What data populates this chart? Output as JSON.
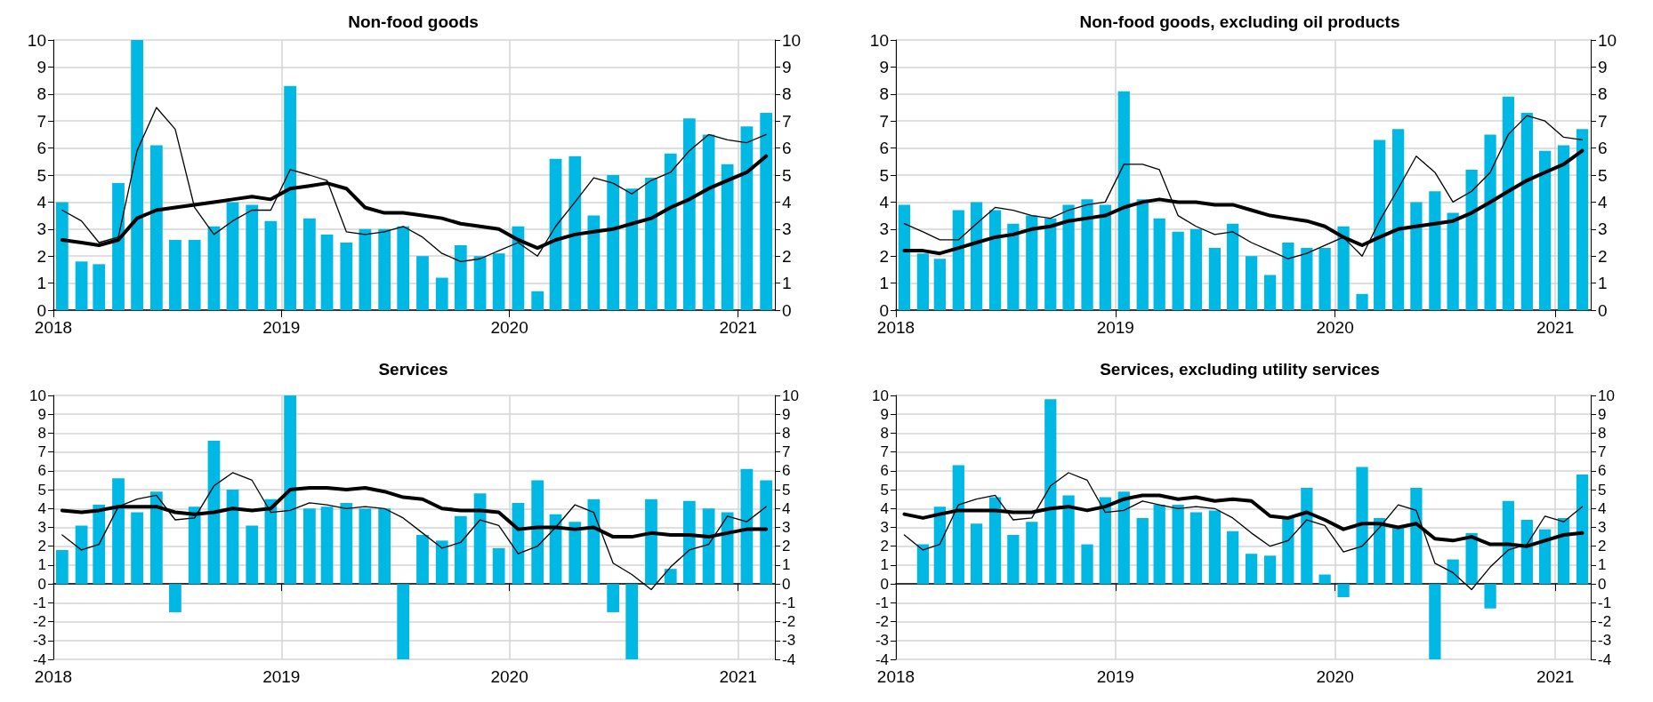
{
  "chart_data": [
    {
      "type": "bar",
      "title": "Non-food goods",
      "x": [
        "2018-01-15",
        "2018-02-15",
        "2018-03-15",
        "2018-04-15",
        "2018-05-15",
        "2018-06-15",
        "2018-07-15",
        "2018-08-15",
        "2018-09-15",
        "2018-10-15",
        "2018-11-15",
        "2018-12-15",
        "2019-01-15",
        "2019-02-15",
        "2019-03-15",
        "2019-04-15",
        "2019-05-15",
        "2019-06-15",
        "2019-07-15",
        "2019-08-15",
        "2019-09-15",
        "2019-10-15",
        "2019-11-15",
        "2019-12-15",
        "2020-01-15",
        "2020-02-15",
        "2020-03-15",
        "2020-04-15",
        "2020-05-15",
        "2020-06-15",
        "2020-07-15",
        "2020-08-15",
        "2020-09-15",
        "2020-10-15",
        "2020-11-15",
        "2020-12-15",
        "2021-01-15",
        "2021-02-15"
      ],
      "xlim": [
        "2018-01-01",
        "2021-03-01"
      ],
      "xticks": [
        "2018",
        "2019",
        "2020",
        "2021"
      ],
      "ylim": [
        0,
        10
      ],
      "yticks": [
        0,
        1,
        2,
        3,
        4,
        5,
        6,
        7,
        8,
        9,
        10
      ],
      "y2lim": [
        0,
        10
      ],
      "y2ticks": [
        0,
        1,
        2,
        3,
        4,
        5,
        6,
        7,
        8,
        9,
        10
      ],
      "grid": true,
      "marker": "none",
      "series": [
        {
          "color": "#00b8e4",
          "values": [
            4.0,
            1.8,
            1.7,
            4.7,
            10,
            6.1,
            2.6,
            2.6,
            3.1,
            4.0,
            3.9,
            3.3,
            8.3,
            3.4,
            2.8,
            2.5,
            3.0,
            3.0,
            3.1,
            2.0,
            1.2,
            2.4,
            2.0,
            2.1,
            3.1,
            0.7,
            5.6,
            5.7,
            3.5,
            5.0,
            4.5,
            4.9,
            5.8,
            7.1,
            6.5,
            5.4,
            6.8,
            7.3
          ]
        },
        {
          "type": "line",
          "color": "#000000",
          "values": [
            3.7,
            3.3,
            2.5,
            2.7,
            5.9,
            7.5,
            6.7,
            3.8,
            2.8,
            3.3,
            3.7,
            3.7,
            5.2,
            5.0,
            4.8,
            2.9,
            2.8,
            2.9,
            3.1,
            2.7,
            2.1,
            1.8,
            1.9,
            2.2,
            2.5,
            2.0,
            3.1,
            4.0,
            4.9,
            4.7,
            4.3,
            4.8,
            5.1,
            5.9,
            6.5,
            6.3,
            6.2,
            6.5
          ]
        },
        {
          "type": "line",
          "color": "#000000",
          "values": [
            2.6,
            2.5,
            2.4,
            2.6,
            3.4,
            3.7,
            3.8,
            3.9,
            4.0,
            4.1,
            4.2,
            4.1,
            4.5,
            4.6,
            4.7,
            4.5,
            3.8,
            3.6,
            3.6,
            3.5,
            3.4,
            3.2,
            3.1,
            3.0,
            2.6,
            2.3,
            2.6,
            2.8,
            2.9,
            3.0,
            3.2,
            3.4,
            3.8,
            4.1,
            4.5,
            4.8,
            5.1,
            5.7
          ]
        }
      ]
    },
    {
      "type": "bar",
      "title": "Non-food goods, excluding oil products",
      "x": [
        "2018-01-15",
        "2018-02-15",
        "2018-03-15",
        "2018-04-15",
        "2018-05-15",
        "2018-06-15",
        "2018-07-15",
        "2018-08-15",
        "2018-09-15",
        "2018-10-15",
        "2018-11-15",
        "2018-12-15",
        "2019-01-15",
        "2019-02-15",
        "2019-03-15",
        "2019-04-15",
        "2019-05-15",
        "2019-06-15",
        "2019-07-15",
        "2019-08-15",
        "2019-09-15",
        "2019-10-15",
        "2019-11-15",
        "2019-12-15",
        "2020-01-15",
        "2020-02-15",
        "2020-03-15",
        "2020-04-15",
        "2020-05-15",
        "2020-06-15",
        "2020-07-15",
        "2020-08-15",
        "2020-09-15",
        "2020-10-15",
        "2020-11-15",
        "2020-12-15",
        "2021-01-15",
        "2021-02-15"
      ],
      "xlim": [
        "2018-01-01",
        "2021-03-01"
      ],
      "xticks": [
        "2018",
        "2019",
        "2020",
        "2021"
      ],
      "ylim": [
        0,
        10
      ],
      "yticks": [
        0,
        1,
        2,
        3,
        4,
        5,
        6,
        7,
        8,
        9,
        10
      ],
      "y2lim": [
        0,
        10
      ],
      "y2ticks": [
        0,
        1,
        2,
        3,
        4,
        5,
        6,
        7,
        8,
        9,
        10
      ],
      "grid": true,
      "marker": "none",
      "series": [
        {
          "color": "#00b8e4",
          "values": [
            3.9,
            2.1,
            1.9,
            3.7,
            4.0,
            3.7,
            3.2,
            3.5,
            3.4,
            3.9,
            4.1,
            3.9,
            8.1,
            4.1,
            3.4,
            2.9,
            3.0,
            2.3,
            3.2,
            2.0,
            1.3,
            2.5,
            2.3,
            2.3,
            3.1,
            0.6,
            6.3,
            6.7,
            4.0,
            4.4,
            3.6,
            5.2,
            6.5,
            7.9,
            7.3,
            5.9,
            6.1,
            6.7
          ]
        },
        {
          "type": "line",
          "color": "#000000",
          "values": [
            3.2,
            2.9,
            2.6,
            2.6,
            3.2,
            3.8,
            3.7,
            3.5,
            3.4,
            3.7,
            3.9,
            4.0,
            5.4,
            5.4,
            5.2,
            3.5,
            3.1,
            2.8,
            2.9,
            2.5,
            2.2,
            1.9,
            2.1,
            2.4,
            2.7,
            2.0,
            3.3,
            4.5,
            5.7,
            5.1,
            4.0,
            4.4,
            5.1,
            6.5,
            7.2,
            7.0,
            6.4,
            6.3
          ]
        },
        {
          "type": "line",
          "color": "#000000",
          "values": [
            2.2,
            2.2,
            2.1,
            2.3,
            2.5,
            2.7,
            2.8,
            3.0,
            3.1,
            3.3,
            3.4,
            3.5,
            3.8,
            4.0,
            4.1,
            4.0,
            4.0,
            3.9,
            3.9,
            3.7,
            3.5,
            3.4,
            3.3,
            3.1,
            2.7,
            2.4,
            2.7,
            3.0,
            3.1,
            3.2,
            3.3,
            3.6,
            4.0,
            4.4,
            4.8,
            5.1,
            5.4,
            5.9
          ]
        }
      ]
    },
    {
      "type": "bar",
      "title": "Services",
      "x": [
        "2018-01-15",
        "2018-02-15",
        "2018-03-15",
        "2018-04-15",
        "2018-05-15",
        "2018-06-15",
        "2018-07-15",
        "2018-08-15",
        "2018-09-15",
        "2018-10-15",
        "2018-11-15",
        "2018-12-15",
        "2019-01-15",
        "2019-02-15",
        "2019-03-15",
        "2019-04-15",
        "2019-05-15",
        "2019-06-15",
        "2019-07-15",
        "2019-08-15",
        "2019-09-15",
        "2019-10-15",
        "2019-11-15",
        "2019-12-15",
        "2020-01-15",
        "2020-02-15",
        "2020-03-15",
        "2020-04-15",
        "2020-05-15",
        "2020-06-15",
        "2020-07-15",
        "2020-08-15",
        "2020-09-15",
        "2020-10-15",
        "2020-11-15",
        "2020-12-15",
        "2021-01-15",
        "2021-02-15"
      ],
      "xlim": [
        "2018-01-01",
        "2021-03-01"
      ],
      "xticks": [
        "2018",
        "2019",
        "2020",
        "2021"
      ],
      "ylim": [
        -4,
        10
      ],
      "yticks": [
        -4,
        -3,
        -2,
        -1,
        0,
        1,
        2,
        3,
        4,
        5,
        6,
        7,
        8,
        9,
        10
      ],
      "y2lim": [
        -4,
        10
      ],
      "y2ticks": [
        -4,
        -3,
        -2,
        -1,
        0,
        1,
        2,
        3,
        4,
        5,
        6,
        7,
        8,
        9,
        10
      ],
      "grid": true,
      "marker": "none",
      "series": [
        {
          "color": "#00b8e4",
          "values": [
            1.8,
            3.1,
            4.2,
            5.6,
            3.8,
            4.9,
            -1.5,
            4.1,
            7.6,
            5.0,
            3.1,
            4.5,
            10,
            4.0,
            4.1,
            4.3,
            4.0,
            4.0,
            -4,
            2.6,
            2.3,
            3.6,
            4.8,
            1.9,
            4.3,
            5.5,
            3.7,
            3.3,
            4.5,
            -1.5,
            -4,
            4.5,
            0.8,
            4.4,
            4.0,
            3.8,
            6.1,
            5.5
          ]
        },
        {
          "type": "line",
          "color": "#000000",
          "values": [
            2.6,
            1.8,
            2.1,
            4.1,
            4.5,
            4.7,
            3.4,
            3.5,
            5.2,
            5.9,
            5.5,
            3.8,
            3.9,
            4.3,
            4.2,
            4.0,
            4.1,
            4.0,
            3.5,
            2.7,
            1.9,
            2.2,
            3.4,
            3.1,
            1.6,
            2.0,
            3.0,
            4.2,
            3.8,
            1.1,
            0.5,
            -0.3,
            0.9,
            1.8,
            2.1,
            3.6,
            3.3,
            4.1
          ]
        },
        {
          "type": "line",
          "color": "#000000",
          "values": [
            3.9,
            3.8,
            3.9,
            4.1,
            4.1,
            4.1,
            3.8,
            3.7,
            3.8,
            4.0,
            3.9,
            4.0,
            5.0,
            5.1,
            5.1,
            5.0,
            5.1,
            4.9,
            4.6,
            4.5,
            4.0,
            3.9,
            3.9,
            3.8,
            2.9,
            3.0,
            3.0,
            2.9,
            3.0,
            2.5,
            2.5,
            2.7,
            2.6,
            2.6,
            2.5,
            2.7,
            2.9,
            2.9
          ]
        }
      ]
    },
    {
      "type": "bar",
      "title": "Services, excluding utility services",
      "x": [
        "2018-01-15",
        "2018-02-15",
        "2018-03-15",
        "2018-04-15",
        "2018-05-15",
        "2018-06-15",
        "2018-07-15",
        "2018-08-15",
        "2018-09-15",
        "2018-10-15",
        "2018-11-15",
        "2018-12-15",
        "2019-01-15",
        "2019-02-15",
        "2019-03-15",
        "2019-04-15",
        "2019-05-15",
        "2019-06-15",
        "2019-07-15",
        "2019-08-15",
        "2019-09-15",
        "2019-10-15",
        "2019-11-15",
        "2019-12-15",
        "2020-01-15",
        "2020-02-15",
        "2020-03-15",
        "2020-04-15",
        "2020-05-15",
        "2020-06-15",
        "2020-07-15",
        "2020-08-15",
        "2020-09-15",
        "2020-10-15",
        "2020-11-15",
        "2020-12-15",
        "2021-01-15",
        "2021-02-15"
      ],
      "xlim": [
        "2018-01-01",
        "2021-03-01"
      ],
      "xticks": [
        "2018",
        "2019",
        "2020",
        "2021"
      ],
      "ylim": [
        -4,
        10
      ],
      "yticks": [
        -4,
        -3,
        -2,
        -1,
        0,
        1,
        2,
        3,
        4,
        5,
        6,
        7,
        8,
        9,
        10
      ],
      "y2lim": [
        -4,
        10
      ],
      "y2ticks": [
        -4,
        -3,
        -2,
        -1,
        0,
        1,
        2,
        3,
        4,
        5,
        6,
        7,
        8,
        9,
        10
      ],
      "grid": true,
      "marker": "none",
      "series": [
        {
          "color": "#00b8e4",
          "values": [
            null,
            2.1,
            4.1,
            6.3,
            3.2,
            4.6,
            2.6,
            3.3,
            9.8,
            4.7,
            2.1,
            4.6,
            4.9,
            3.5,
            4.2,
            4.2,
            3.8,
            3.9,
            2.8,
            1.6,
            1.5,
            3.5,
            5.1,
            0.5,
            -0.7,
            6.2,
            3.5,
            3.0,
            5.1,
            -4,
            1.3,
            2.7,
            -1.3,
            4.4,
            3.4,
            2.9,
            3.5,
            5.8
          ]
        },
        {
          "type": "line",
          "color": "#000000",
          "values": [
            2.6,
            1.8,
            2.1,
            4.2,
            4.5,
            4.7,
            3.4,
            3.5,
            5.2,
            5.9,
            5.5,
            3.8,
            3.9,
            4.4,
            4.2,
            4.0,
            4.1,
            4.0,
            3.5,
            2.7,
            2.0,
            2.3,
            3.4,
            3.1,
            1.7,
            2.0,
            3.0,
            4.2,
            3.9,
            1.1,
            0.6,
            -0.3,
            0.9,
            1.8,
            2.1,
            3.6,
            3.3,
            4.1
          ]
        },
        {
          "type": "line",
          "color": "#000000",
          "values": [
            3.7,
            3.5,
            3.7,
            3.9,
            3.9,
            3.9,
            3.8,
            3.8,
            4.0,
            4.1,
            3.9,
            4.1,
            4.5,
            4.7,
            4.7,
            4.5,
            4.6,
            4.4,
            4.5,
            4.4,
            3.6,
            3.5,
            3.8,
            3.4,
            2.9,
            3.2,
            3.2,
            3.0,
            3.2,
            2.4,
            2.3,
            2.5,
            2.1,
            2.1,
            2.0,
            2.3,
            2.6,
            2.7
          ]
        }
      ]
    }
  ]
}
